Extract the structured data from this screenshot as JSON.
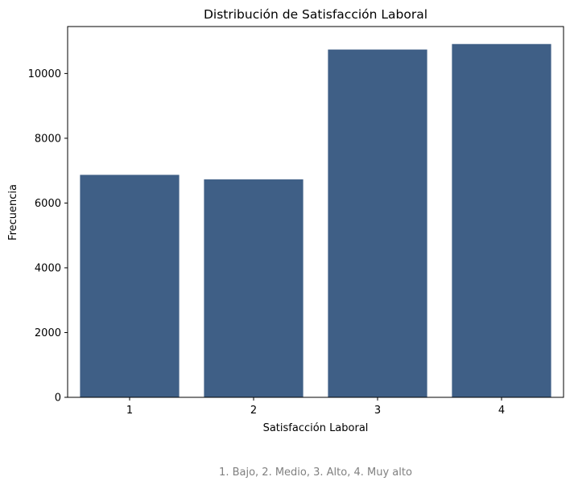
{
  "chart_data": {
    "type": "bar",
    "title": "Distribución de Satisfacción Laboral",
    "xlabel": "Satisfacción Laboral",
    "ylabel": "Frecuencia",
    "categories": [
      "1",
      "2",
      "3",
      "4"
    ],
    "values": [
      6870,
      6730,
      10740,
      10910
    ],
    "ylim": [
      0,
      11450
    ],
    "yticks": [
      0,
      2000,
      4000,
      6000,
      8000,
      10000
    ],
    "grid": false,
    "bar_color": "#3f5f86",
    "footnote": "1. Bajo, 2. Medio, 3. Alto, 4. Muy alto"
  }
}
